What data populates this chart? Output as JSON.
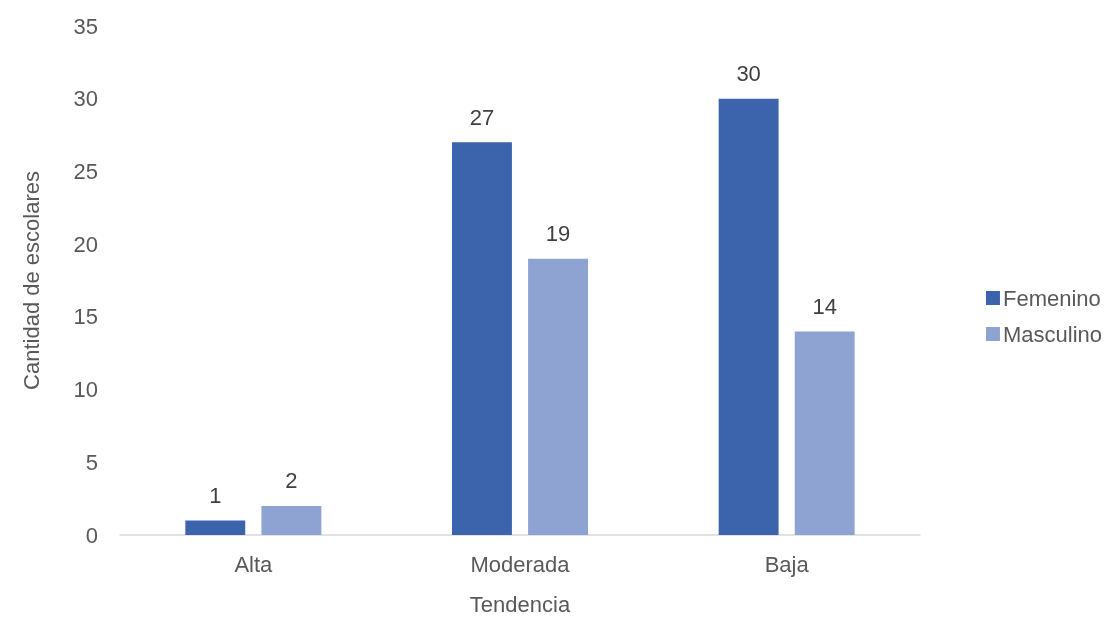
{
  "chart_data": {
    "type": "bar",
    "xlabel": "Tendencia",
    "ylabel": "Cantidad de escolares",
    "categories": [
      "Alta",
      "Moderada",
      "Baja"
    ],
    "series": [
      {
        "name": "Femenino",
        "color": "#3c64ad",
        "values": [
          1,
          27,
          30
        ]
      },
      {
        "name": "Masculino",
        "color": "#8fa3d3",
        "values": [
          2,
          19,
          14
        ]
      }
    ],
    "ylim": [
      0,
      35
    ],
    "yticks": [
      0,
      5,
      10,
      15,
      20,
      25,
      30,
      35
    ],
    "grid": false,
    "legend": "right",
    "data_labels": true
  }
}
